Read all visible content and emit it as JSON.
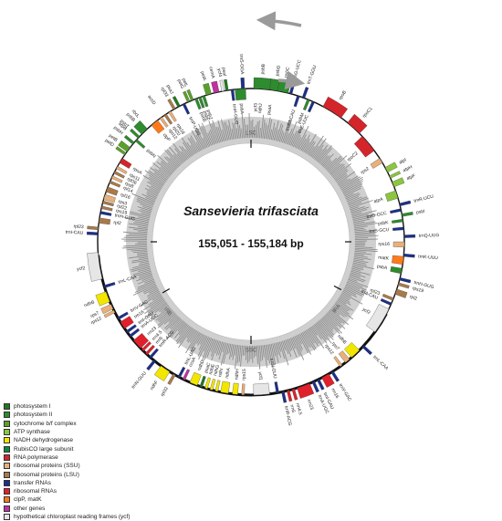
{
  "title": "Sansevieria trifasciata",
  "size_label": "155,051 - 155,184 bp",
  "regions": [
    {
      "name": "LSC",
      "angle": 0
    },
    {
      "name": "IRA",
      "angle": 118
    },
    {
      "name": "SSC",
      "angle": 180
    },
    {
      "name": "IRB",
      "angle": 240
    }
  ],
  "legend": [
    {
      "label": "photosystem I",
      "color": "#1f7a1f"
    },
    {
      "label": "photosystem II",
      "color": "#2e8b2e"
    },
    {
      "label": "cytochrome b/f complex",
      "color": "#5aa02c"
    },
    {
      "label": "ATP synthase",
      "color": "#8cc63f"
    },
    {
      "label": "NADH dehydrogenase",
      "color": "#f2e600"
    },
    {
      "label": "RubisCO large subunit",
      "color": "#0a8a3a"
    },
    {
      "label": "RNA polymerase",
      "color": "#d4252a"
    },
    {
      "label": "ribosomal proteins (SSU)",
      "color": "#e8b07a"
    },
    {
      "label": "ribosomal proteins (LSU)",
      "color": "#a87a4a"
    },
    {
      "label": "transfer RNAs",
      "color": "#1b2f8a"
    },
    {
      "label": "ribosomal RNAs",
      "color": "#e0202a"
    },
    {
      "label": "clpP, matK",
      "color": "#ff7a1a"
    },
    {
      "label": "other genes",
      "color": "#c030a0"
    },
    {
      "label": "hypothetical chloroplast reading frames (ycf)",
      "color": "#e6e6e6"
    }
  ],
  "genes": [
    {
      "name": "trnS-GGA",
      "angle": 357,
      "len": 1.2,
      "out": true,
      "color": "#1b2f8a"
    },
    {
      "name": "psbA",
      "angle": 356,
      "len": 4,
      "out": false,
      "color": "#2e8b2e"
    },
    {
      "name": "trnH-GUG",
      "angle": 353,
      "len": 1,
      "out": false,
      "color": "#1b2f8a"
    },
    {
      "name": "psbB",
      "angle": 4,
      "len": 6,
      "out": true,
      "color": "#2e8b2e"
    },
    {
      "name": "psbD",
      "angle": 9,
      "len": 4,
      "out": true,
      "color": "#2e8b2e"
    },
    {
      "name": "psbC",
      "angle": 12,
      "len": 4,
      "out": true,
      "color": "#2e8b2e"
    },
    {
      "name": "trnG-UCC",
      "angle": 15,
      "len": 1,
      "out": true,
      "color": "#1b2f8a"
    },
    {
      "name": "trnfM-CAU",
      "angle": 18,
      "len": 1,
      "out": false,
      "color": "#1b2f8a"
    },
    {
      "name": "trnT-GGU",
      "angle": 20,
      "len": 1,
      "out": true,
      "color": "#1b2f8a"
    },
    {
      "name": "psbM",
      "angle": 22,
      "len": 1,
      "out": false,
      "color": "#2e8b2e"
    },
    {
      "name": "trnE-UUC",
      "angle": 24,
      "len": 1,
      "out": false,
      "color": "#1b2f8a"
    },
    {
      "name": "rpoB",
      "angle": 32,
      "len": 8,
      "out": true,
      "color": "#d4252a"
    },
    {
      "name": "rpoC1",
      "angle": 42,
      "len": 6,
      "out": true,
      "color": "#d4252a"
    },
    {
      "name": "rpoC2",
      "angle": 50,
      "len": 7,
      "out": false,
      "color": "#d4252a"
    },
    {
      "name": "rps2",
      "angle": 58,
      "len": 2,
      "out": false,
      "color": "#e8b07a"
    },
    {
      "name": "atpI",
      "angle": 62,
      "len": 2,
      "out": true,
      "color": "#8cc63f"
    },
    {
      "name": "atpH",
      "angle": 65,
      "len": 1,
      "out": true,
      "color": "#8cc63f"
    },
    {
      "name": "atpF",
      "angle": 68,
      "len": 2,
      "out": true,
      "color": "#8cc63f"
    },
    {
      "name": "atpA",
      "angle": 72,
      "len": 3,
      "out": false,
      "color": "#8cc63f"
    },
    {
      "name": "trnR-UCU",
      "angle": 76,
      "len": 1,
      "out": true,
      "color": "#1b2f8a"
    },
    {
      "name": "trnG-GCC",
      "angle": 78,
      "len": 1,
      "out": false,
      "color": "#1b2f8a"
    },
    {
      "name": "psbI",
      "angle": 80,
      "len": 1,
      "out": true,
      "color": "#2e8b2e"
    },
    {
      "name": "psbK",
      "angle": 82,
      "len": 1,
      "out": false,
      "color": "#2e8b2e"
    },
    {
      "name": "trnS-GCU",
      "angle": 85,
      "len": 1,
      "out": false,
      "color": "#1b2f8a"
    },
    {
      "name": "trnQ-UUG",
      "angle": 88,
      "len": 1,
      "out": true,
      "color": "#1b2f8a"
    },
    {
      "name": "rps16",
      "angle": 91,
      "len": 2,
      "out": false,
      "color": "#e8b07a"
    },
    {
      "name": "trnK-UUU",
      "angle": 95,
      "len": 1,
      "out": true,
      "color": "#1b2f8a"
    },
    {
      "name": "matK",
      "angle": 97,
      "len": 3,
      "out": false,
      "color": "#ff7a1a"
    },
    {
      "name": "psbA",
      "angle": 101,
      "len": 2,
      "out": false,
      "color": "#2e8b2e"
    },
    {
      "name": "trnH-GUG",
      "angle": 104,
      "len": 1,
      "out": true,
      "color": "#1b2f8a"
    },
    {
      "name": "rps19",
      "angle": 106,
      "len": 1,
      "out": true,
      "color": "#a87a4a"
    },
    {
      "name": "rpl2",
      "angle": 109,
      "len": 2,
      "out": true,
      "color": "#a87a4a"
    },
    {
      "name": "rpl23",
      "angle": 112,
      "len": 1,
      "out": false,
      "color": "#a87a4a"
    },
    {
      "name": "trnI-CAU",
      "angle": 114,
      "len": 1,
      "out": false,
      "color": "#1b2f8a"
    },
    {
      "name": "ycf2",
      "angle": 121,
      "len": 10,
      "out": false,
      "color": "#e6e6e6"
    },
    {
      "name": "trnL-CAA",
      "angle": 133,
      "len": 1,
      "out": true,
      "color": "#1b2f8a"
    },
    {
      "name": "ndhB",
      "angle": 137,
      "len": 4,
      "out": false,
      "color": "#f2e600"
    },
    {
      "name": "rps7",
      "angle": 141,
      "len": 2,
      "out": false,
      "color": "#e8b07a"
    },
    {
      "name": "rps12",
      "angle": 144,
      "len": 1,
      "out": false,
      "color": "#e8b07a"
    },
    {
      "name": "trnV-GAC",
      "angle": 148,
      "len": 1,
      "out": true,
      "color": "#1b2f8a"
    },
    {
      "name": "rrn16",
      "angle": 151,
      "len": 3,
      "out": true,
      "color": "#e0202a"
    },
    {
      "name": "trnI-GAU",
      "angle": 154,
      "len": 1,
      "out": true,
      "color": "#1b2f8a"
    },
    {
      "name": "trnA-UGC",
      "angle": 156,
      "len": 1,
      "out": true,
      "color": "#1b2f8a"
    },
    {
      "name": "rrn23",
      "angle": 160,
      "len": 5,
      "out": true,
      "color": "#e0202a"
    },
    {
      "name": "rrn4.5",
      "angle": 164,
      "len": 1,
      "out": true,
      "color": "#e0202a"
    },
    {
      "name": "rrn5",
      "angle": 166,
      "len": 1,
      "out": true,
      "color": "#e0202a"
    },
    {
      "name": "trnR-ACG",
      "angle": 168,
      "len": 1,
      "out": true,
      "color": "#1b2f8a"
    },
    {
      "name": "trnN-GUU",
      "angle": 170,
      "len": 1,
      "out": false,
      "color": "#1b2f8a"
    },
    {
      "name": "ycf1",
      "angle": 176,
      "len": 6,
      "out": false,
      "color": "#e6e6e6"
    },
    {
      "name": "rps15",
      "angle": 183,
      "len": 1,
      "out": false,
      "color": "#e8b07a"
    },
    {
      "name": "ndhH",
      "angle": 186,
      "len": 2,
      "out": false,
      "color": "#f2e600"
    },
    {
      "name": "ndhA",
      "angle": 190,
      "len": 3,
      "out": false,
      "color": "#f2e600"
    },
    {
      "name": "ndhI",
      "angle": 193,
      "len": 1,
      "out": false,
      "color": "#f2e600"
    },
    {
      "name": "ndhG",
      "angle": 195,
      "len": 1,
      "out": false,
      "color": "#f2e600"
    },
    {
      "name": "ndhE",
      "angle": 197,
      "len": 1,
      "out": false,
      "color": "#f2e600"
    },
    {
      "name": "psaC",
      "angle": 199,
      "len": 1,
      "out": false,
      "color": "#1f7a1f"
    },
    {
      "name": "ndhD",
      "angle": 202,
      "len": 3,
      "out": false,
      "color": "#f2e600"
    },
    {
      "name": "ccsA",
      "angle": 206,
      "len": 1,
      "out": false,
      "color": "#c030a0"
    },
    {
      "name": "trnL-UAG",
      "angle": 208,
      "len": 1,
      "out": false,
      "color": "#1b2f8a"
    },
    {
      "name": "rpl32",
      "angle": 210,
      "len": 1,
      "out": true,
      "color": "#a87a4a"
    },
    {
      "name": "ndhF",
      "angle": 214,
      "len": 4,
      "out": true,
      "color": "#f2e600"
    },
    {
      "name": "trnN-GUU",
      "angle": 219,
      "len": 1,
      "out": true,
      "color": "#1b2f8a"
    },
    {
      "name": "trnR-ACG",
      "angle": 221,
      "len": 1,
      "out": false,
      "color": "#1b2f8a"
    },
    {
      "name": "rrn5",
      "angle": 223,
      "len": 1,
      "out": false,
      "color": "#e0202a"
    },
    {
      "name": "rrn4.5",
      "angle": 225,
      "len": 1,
      "out": false,
      "color": "#e0202a"
    },
    {
      "name": "rrn23",
      "angle": 228,
      "len": 4,
      "out": false,
      "color": "#e0202a"
    },
    {
      "name": "trnA-UGC",
      "angle": 232,
      "len": 1,
      "out": false,
      "color": "#1b2f8a"
    },
    {
      "name": "trnI-GAU",
      "angle": 234,
      "len": 1,
      "out": false,
      "color": "#1b2f8a"
    },
    {
      "name": "rrn16",
      "angle": 237,
      "len": 3,
      "out": false,
      "color": "#e0202a"
    },
    {
      "name": "trnV-GAC",
      "angle": 240,
      "len": 1,
      "out": false,
      "color": "#1b2f8a"
    },
    {
      "name": "rps12",
      "angle": 243,
      "len": 1,
      "out": true,
      "color": "#e8b07a"
    },
    {
      "name": "rps7",
      "angle": 245,
      "len": 2,
      "out": true,
      "color": "#e8b07a"
    },
    {
      "name": "ndhB",
      "angle": 249,
      "len": 4,
      "out": true,
      "color": "#f2e600"
    },
    {
      "name": "trnL-CAA",
      "angle": 253,
      "len": 1,
      "out": false,
      "color": "#1b2f8a"
    },
    {
      "name": "ycf2",
      "angle": 261,
      "len": 10,
      "out": true,
      "color": "#e6e6e6"
    },
    {
      "name": "trnI-CAU",
      "angle": 273,
      "len": 1,
      "out": true,
      "color": "#1b2f8a"
    },
    {
      "name": "rpl23",
      "angle": 275,
      "len": 1,
      "out": true,
      "color": "#a87a4a"
    },
    {
      "name": "rpl2",
      "angle": 278,
      "len": 2,
      "out": false,
      "color": "#a87a4a"
    },
    {
      "name": "trnH-GUG",
      "angle": 281,
      "len": 1,
      "out": false,
      "color": "#1b2f8a"
    },
    {
      "name": "rps19",
      "angle": 283,
      "len": 1,
      "out": false,
      "color": "#a87a4a"
    },
    {
      "name": "rpl22",
      "angle": 285,
      "len": 1,
      "out": false,
      "color": "#a87a4a"
    },
    {
      "name": "rps3",
      "angle": 287,
      "len": 2,
      "out": false,
      "color": "#e8b07a"
    },
    {
      "name": "rpl16",
      "angle": 290,
      "len": 2,
      "out": false,
      "color": "#a87a4a"
    },
    {
      "name": "rpl14",
      "angle": 293,
      "len": 1,
      "out": false,
      "color": "#a87a4a"
    },
    {
      "name": "rps8",
      "angle": 295,
      "len": 1,
      "out": false,
      "color": "#e8b07a"
    },
    {
      "name": "rpl36",
      "angle": 297,
      "len": 1,
      "out": false,
      "color": "#a87a4a"
    },
    {
      "name": "rps11",
      "angle": 299,
      "len": 1,
      "out": false,
      "color": "#e8b07a"
    },
    {
      "name": "rpoA",
      "angle": 302,
      "len": 2,
      "out": false,
      "color": "#d4252a"
    },
    {
      "name": "petD",
      "angle": 305,
      "len": 1,
      "out": true,
      "color": "#5aa02c"
    },
    {
      "name": "petB",
      "angle": 307,
      "len": 2,
      "out": true,
      "color": "#5aa02c"
    },
    {
      "name": "psbH",
      "angle": 310,
      "len": 1,
      "out": true,
      "color": "#2e8b2e"
    },
    {
      "name": "psbN",
      "angle": 311.5,
      "len": 1,
      "out": false,
      "color": "#2e8b2e"
    },
    {
      "name": "psbT",
      "angle": 313,
      "len": 1,
      "out": true,
      "color": "#2e8b2e"
    },
    {
      "name": "psbB",
      "angle": 316,
      "len": 3,
      "out": true,
      "color": "#2e8b2e"
    },
    {
      "name": "clpP",
      "angle": 321,
      "len": 3,
      "out": false,
      "color": "#ff7a1a"
    },
    {
      "name": "rps12",
      "angle": 324,
      "len": 1,
      "out": false,
      "color": "#e8b07a"
    },
    {
      "name": "rpl20",
      "angle": 326,
      "len": 1,
      "out": false,
      "color": "#a87a4a"
    },
    {
      "name": "rps18",
      "angle": 328,
      "len": 1,
      "out": false,
      "color": "#e8b07a"
    },
    {
      "name": "rpl33",
      "angle": 330,
      "len": 1,
      "out": true,
      "color": "#a87a4a"
    },
    {
      "name": "psaJ",
      "angle": 332,
      "len": 1,
      "out": true,
      "color": "#1f7a1f"
    },
    {
      "name": "trnP-UGG",
      "angle": 334,
      "len": 1,
      "out": false,
      "color": "#1b2f8a"
    },
    {
      "name": "petG",
      "angle": 336,
      "len": 1,
      "out": true,
      "color": "#5aa02c"
    },
    {
      "name": "petL",
      "angle": 337.5,
      "len": 1,
      "out": true,
      "color": "#5aa02c"
    },
    {
      "name": "psbE",
      "angle": 339,
      "len": 1,
      "out": false,
      "color": "#2e8b2e"
    },
    {
      "name": "psbF",
      "angle": 340.5,
      "len": 1,
      "out": false,
      "color": "#2e8b2e"
    },
    {
      "name": "psbJ",
      "angle": 342,
      "len": 1,
      "out": false,
      "color": "#2e8b2e"
    },
    {
      "name": "petA",
      "angle": 344,
      "len": 2,
      "out": true,
      "color": "#5aa02c"
    },
    {
      "name": "cemA",
      "angle": 347,
      "len": 2,
      "out": true,
      "color": "#c030a0"
    },
    {
      "name": "ycf4",
      "angle": 349.5,
      "len": 1,
      "out": true,
      "color": "#e6e6e6"
    },
    {
      "name": "psaI",
      "angle": 351,
      "len": 1,
      "out": true,
      "color": "#1f7a1f"
    },
    {
      "name": "accD",
      "angle": 325,
      "len": 0,
      "out": true,
      "color": "#c030a0"
    },
    {
      "name": "rbcL",
      "angle": 318,
      "len": 0,
      "out": true,
      "color": "#0a8a3a"
    },
    {
      "name": "atpB",
      "angle": 312,
      "len": 0,
      "out": true,
      "color": "#8cc63f"
    },
    {
      "name": "ndhJ",
      "angle": 4,
      "len": 0,
      "out": false,
      "color": "#f2e600"
    },
    {
      "name": "ycf3",
      "angle": 2,
      "len": 0,
      "out": false,
      "color": "#e6e6e6"
    },
    {
      "name": "psaA",
      "angle": 8,
      "len": 0,
      "out": false,
      "color": "#1f7a1f"
    }
  ]
}
